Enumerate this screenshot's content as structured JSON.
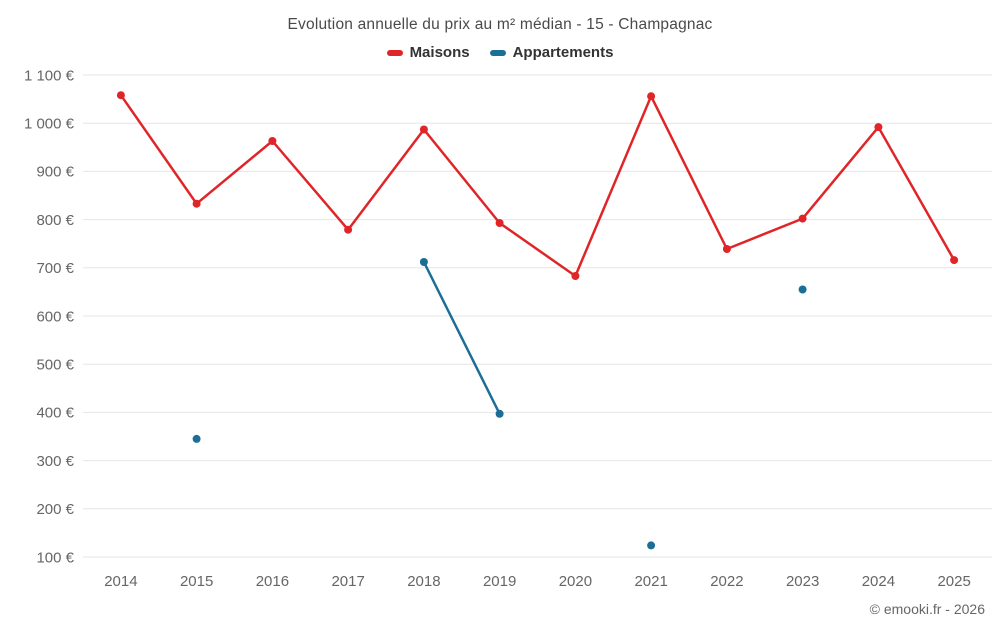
{
  "header": {
    "title": "Evolution annuelle du prix au m² médian - 15 - Champagnac"
  },
  "legend": {
    "items": [
      {
        "label": "Maisons",
        "color": "#e02529"
      },
      {
        "label": "Appartements",
        "color": "#1b6e96"
      }
    ]
  },
  "footer": {
    "credits": "© emooki.fr - 2026"
  },
  "chart_data": {
    "type": "line",
    "title": "Evolution annuelle du prix au m² médian - 15 - Champagnac",
    "categories": [
      "2014",
      "2015",
      "2016",
      "2017",
      "2018",
      "2019",
      "2020",
      "2021",
      "2022",
      "2023",
      "2024",
      "2025"
    ],
    "series": [
      {
        "name": "Maisons",
        "color": "#e02529",
        "values": [
          1058,
          833,
          963,
          779,
          987,
          793,
          683,
          1056,
          739,
          802,
          992,
          716
        ]
      },
      {
        "name": "Appartements",
        "color": "#1b6e96",
        "values": [
          null,
          345,
          null,
          null,
          712,
          397,
          null,
          124,
          null,
          655,
          null,
          null
        ]
      }
    ],
    "xlabel": "",
    "ylabel": "",
    "ylim": [
      100,
      1100
    ],
    "ytick_step": 100,
    "y_suffix": " €",
    "grid": "horizontal",
    "legend_position": "top",
    "marker_radius": 4,
    "line_width": 2.5
  }
}
